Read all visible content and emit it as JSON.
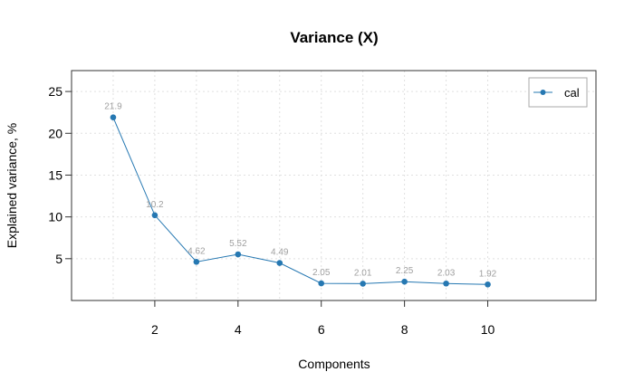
{
  "chart_data": {
    "type": "line",
    "title": "Variance (X)",
    "xlabel": "Components",
    "ylabel": "Explained variance, %",
    "x": [
      1,
      2,
      3,
      4,
      5,
      6,
      7,
      8,
      9,
      10
    ],
    "series": [
      {
        "name": "cal",
        "values": [
          21.9,
          10.2,
          4.62,
          5.52,
          4.49,
          2.05,
          2.01,
          2.25,
          2.03,
          1.92
        ],
        "labels": [
          "21.9",
          "10.2",
          "4.62",
          "5.52",
          "4.49",
          "2.05",
          "2.01",
          "2.25",
          "2.03",
          "1.92"
        ],
        "color": "#2678b2"
      }
    ],
    "xlim": [
      0,
      12.6
    ],
    "ylim": [
      0,
      27.5
    ],
    "xticks": [
      2,
      4,
      6,
      8,
      10
    ],
    "yticks": [
      5,
      10,
      15,
      20,
      25
    ],
    "grid": true,
    "legend_position": "top-right"
  }
}
